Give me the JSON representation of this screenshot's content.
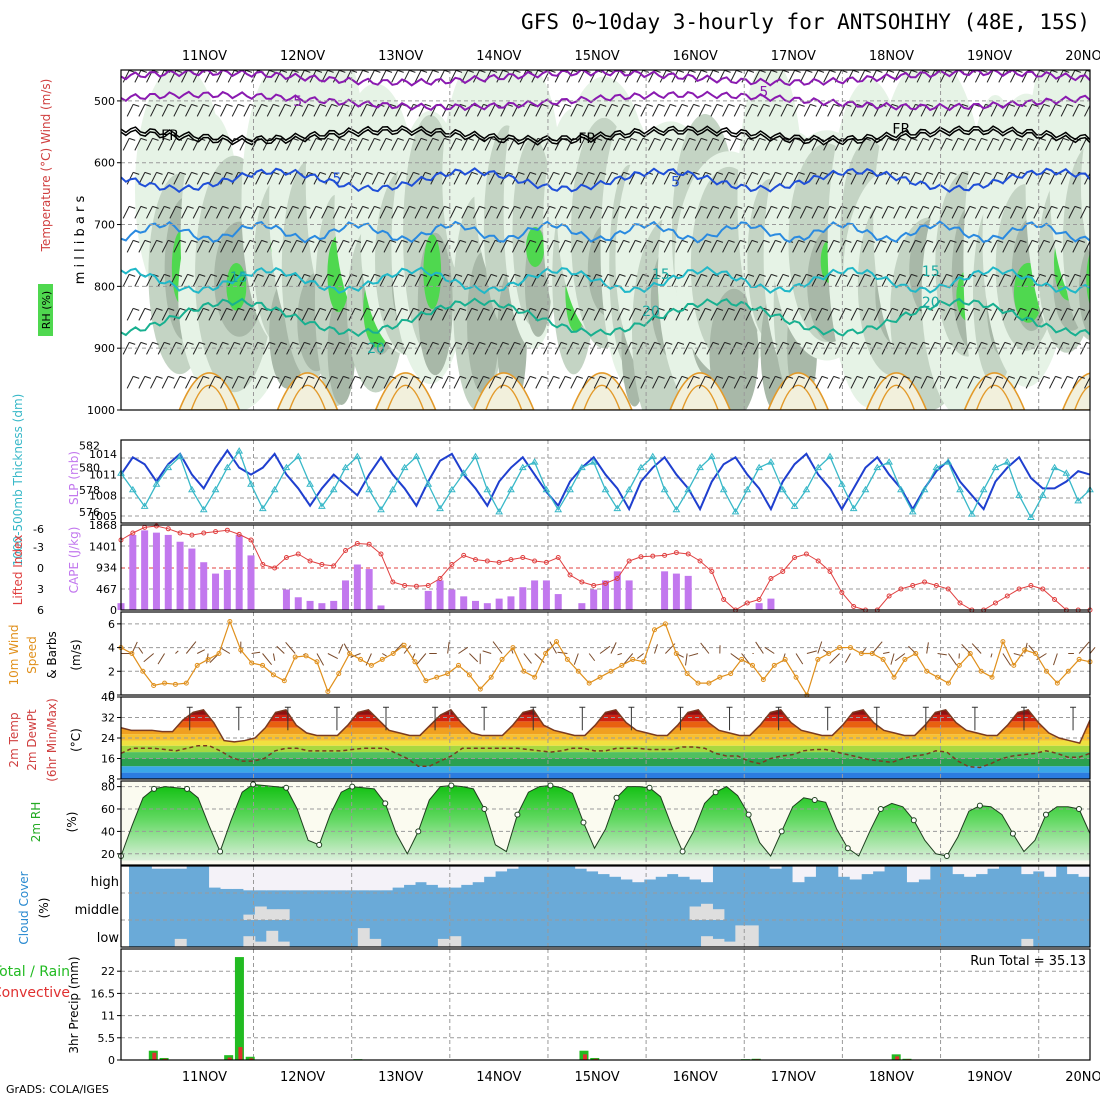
{
  "title": "GFS 0~10day 3-hourly for ANTSOHIHY (48E, 15S)",
  "credit": "GrADS: COLA/IGES",
  "colors": {
    "rh_green": "#4fd84f",
    "rh_light": "#e6f3e6",
    "rh_mid": "#c4d4c4",
    "rh_dark": "#a8b8a8",
    "slp": "#1f3fcf",
    "thickness": "#38b8c8",
    "cape": "#c278ee",
    "lifted": "#e04040",
    "wind10": "#e0901c",
    "barb": "#7a4a2a",
    "cloud": "#6aaad8",
    "cloud_gap": "#f4f2f8",
    "precip_total": "#22bb22",
    "precip_conv": "#e03030"
  },
  "time_axis": {
    "labels": [
      "11NOV",
      "12NOV",
      "13NOV",
      "14NOV",
      "15NOV",
      "16NOV",
      "17NOV",
      "18NOV",
      "19NOV",
      "20NOV"
    ]
  },
  "chart_data": [
    {
      "type": "heatmap",
      "panel": "upper-air",
      "ylabel": "m i l l i b a r s",
      "ylabel_parts": [
        "RH (%)",
        "Temperature (°C)",
        "Wind (m/s)"
      ],
      "yticks": [
        500,
        600,
        700,
        800,
        900,
        1000
      ],
      "ylim": [
        1000,
        450
      ],
      "contour_labels": [
        {
          "text": "5",
          "day": 1.45,
          "p": 500
        },
        {
          "text": "5",
          "day": 6.2,
          "p": 485
        },
        {
          "text": "FR",
          "day": 0.15,
          "p": 555
        },
        {
          "text": "FR",
          "day": 4.4,
          "p": 560
        },
        {
          "text": "FR",
          "day": 7.6,
          "p": 545
        },
        {
          "text": "5",
          "day": 1.85,
          "p": 625
        },
        {
          "text": "5",
          "day": 5.3,
          "p": 630
        },
        {
          "text": "15",
          "day": 0.85,
          "p": 785
        },
        {
          "text": "15",
          "day": 5.15,
          "p": 780
        },
        {
          "text": "15",
          "day": 7.9,
          "p": 775
        },
        {
          "text": "20",
          "day": 5.05,
          "p": 840
        },
        {
          "text": "20",
          "day": 7.9,
          "p": 825
        },
        {
          "text": "20",
          "day": 2.25,
          "p": 900
        }
      ]
    },
    {
      "type": "line",
      "panel": "slp-thickness",
      "ylabel_left": "1000-500mb Thickness (dm)",
      "ylabel_right": "SLP (mb)",
      "left_ticks": [
        576,
        578,
        580,
        582
      ],
      "right_ticks": [
        1005,
        1008,
        1011,
        1014
      ],
      "slp_mb": [
        1011,
        1013.5,
        1012.5,
        1010,
        1012.5,
        1014,
        1011,
        1009,
        1012,
        1014.5,
        1012,
        1011,
        1012,
        1014,
        1011,
        1009,
        1006.5,
        1009,
        1011,
        1009.5,
        1008,
        1011,
        1013.5,
        1011,
        1009,
        1006.5,
        1010,
        1013,
        1014,
        1011,
        1009,
        1006.5,
        1010,
        1012,
        1013.5,
        1011,
        1008.5,
        1006.5,
        1010,
        1012,
        1013.5,
        1011,
        1009,
        1006,
        1010,
        1012,
        1013.5,
        1011,
        1009,
        1006,
        1010,
        1012.5,
        1013.5,
        1011,
        1009,
        1006,
        1010,
        1012.5,
        1014,
        1011,
        1009,
        1006,
        1009,
        1012,
        1013.5,
        1011,
        1009,
        1006,
        1009,
        1011.5,
        1013,
        1010,
        1008,
        1006,
        1010,
        1012,
        1013.5,
        1010.5,
        1009,
        1009,
        1010,
        1011.5,
        1011
      ],
      "thickness_dm": [
        579.5,
        578,
        576.5,
        578.5,
        580,
        581,
        578,
        576.2,
        578,
        580,
        581.5,
        578.5,
        576.3,
        578,
        580,
        581,
        578.5,
        576.5,
        578,
        580,
        581,
        578,
        576.2,
        578,
        580,
        581,
        578.5,
        576.3,
        578,
        579.5,
        581,
        578,
        576,
        578,
        580,
        580.5,
        578,
        576.2,
        578,
        580,
        580.5,
        578,
        576.3,
        578,
        580,
        581,
        578,
        576.2,
        578,
        580,
        581,
        578,
        576,
        578,
        580,
        580.5,
        578,
        576.5,
        578,
        580,
        581,
        578.5,
        576.3,
        578,
        580,
        580.5,
        578,
        576,
        578,
        580,
        580.5,
        578,
        575.8,
        578,
        580,
        580.5,
        577.5,
        575.5,
        577.5,
        580,
        579.5,
        577,
        578
      ]
    },
    {
      "type": "bar",
      "panel": "cape-li",
      "ylabel_left": "Lifted Index",
      "ylabel_right": "CAPE (J/kg)",
      "left_ticks": [
        "6",
        "3",
        "0",
        "-3",
        "-6"
      ],
      "right_ticks": [
        0,
        467,
        934,
        1401,
        1868
      ],
      "cape_jkg": [
        150,
        1650,
        1750,
        1700,
        1650,
        1500,
        1350,
        1050,
        800,
        880,
        1650,
        1200,
        0,
        0,
        450,
        280,
        200,
        150,
        200,
        650,
        1000,
        900,
        100,
        0,
        0,
        0,
        420,
        650,
        450,
        300,
        200,
        150,
        250,
        300,
        500,
        650,
        650,
        350,
        0,
        150,
        450,
        650,
        850,
        650,
        0,
        0,
        850,
        800,
        750,
        0,
        0,
        0,
        0,
        0,
        150,
        250,
        0,
        0,
        0,
        0,
        0,
        0,
        0,
        0,
        0,
        0,
        0,
        0,
        0,
        0,
        0,
        0,
        0,
        0,
        0,
        0,
        0,
        0,
        0,
        0,
        0,
        0,
        0
      ],
      "lifted_index": [
        -4,
        -5,
        -5.8,
        -6,
        -5.6,
        -5,
        -4.7,
        -5,
        -5.2,
        -5.4,
        -4.8,
        -4,
        -0.5,
        0,
        -1.5,
        -2,
        -1,
        -0.5,
        -0.3,
        -2.5,
        -3.5,
        -3.4,
        -2,
        2,
        2.5,
        2.6,
        2.5,
        1.5,
        -0.5,
        -1.8,
        -1.2,
        -1,
        -0.8,
        -1.2,
        -1.5,
        -1,
        -0.8,
        -1.5,
        1,
        2,
        2.5,
        2.2,
        1.5,
        -1,
        -1.6,
        -1.7,
        -1.8,
        -2.2,
        -2,
        -1,
        0.5,
        4.5,
        6,
        5,
        4.5,
        1.5,
        0.5,
        -1.5,
        -2,
        -1,
        0.5,
        3.5,
        5.5,
        6,
        6,
        4,
        3,
        2.5,
        2,
        2.5,
        3,
        5,
        6,
        6,
        5,
        4,
        3,
        2.5,
        3,
        4.5,
        6,
        6,
        6
      ]
    },
    {
      "type": "line",
      "panel": "wind10m",
      "ylabel": "10m Wind Speed & Barbs (m/s)",
      "ylim": [
        0,
        7
      ],
      "yticks": [
        0,
        2,
        4,
        6
      ],
      "speed_ms": [
        4,
        3.5,
        2,
        0.8,
        1,
        0.9,
        1,
        2.5,
        3,
        3.5,
        6.2,
        3.8,
        2.7,
        2.5,
        1.7,
        1.2,
        3.2,
        3.3,
        2.8,
        0.3,
        1.8,
        3.5,
        3,
        2.5,
        3,
        3.5,
        4.2,
        2.8,
        1.2,
        1.5,
        1.8,
        2.5,
        1.7,
        0.5,
        1.5,
        3,
        4,
        2,
        1.5,
        3.5,
        4.5,
        3,
        2,
        1,
        1.5,
        2,
        2.5,
        3,
        2.8,
        5.5,
        6,
        3.5,
        1.8,
        1,
        1,
        1.5,
        1.8,
        3,
        2.5,
        1.3,
        2.5,
        3,
        1.5,
        0,
        3,
        3.5,
        4,
        4,
        3.5,
        3.5,
        3,
        1.5,
        3,
        3.5,
        2,
        1.5,
        1,
        2.5,
        3.5,
        2,
        1.5,
        4.5,
        2.5,
        3.8,
        3.5,
        2,
        1,
        2,
        3,
        2.8
      ]
    },
    {
      "type": "area",
      "panel": "temp2m",
      "ylabel": "2m Temp 2m DewPt (6hr Min/Max) (°C)",
      "ylim": [
        8,
        40
      ],
      "yticks": [
        8,
        16,
        24,
        32,
        40
      ],
      "temp_c": [
        28,
        27,
        27,
        27,
        26.5,
        26.5,
        31,
        34,
        35,
        30,
        23,
        22.5,
        23,
        24,
        28,
        34,
        35,
        29,
        26,
        25,
        25,
        25,
        29,
        34,
        35,
        31,
        27,
        26,
        25,
        25,
        29,
        33,
        35,
        30,
        26,
        25,
        25,
        25,
        29,
        34,
        35,
        29,
        27,
        26,
        25,
        25,
        29,
        34,
        35,
        30,
        27,
        26,
        25,
        25,
        29,
        34,
        35,
        30,
        27,
        26,
        25,
        25,
        29,
        34,
        35,
        30,
        27,
        26,
        25,
        25,
        29,
        34,
        35,
        30,
        27,
        26,
        25,
        25,
        29,
        34,
        35,
        30,
        27,
        26,
        25,
        25,
        29,
        34,
        35,
        30,
        26,
        24,
        23,
        22,
        31
      ],
      "dewpoint_c": [
        18,
        20,
        20,
        20,
        19.5,
        19,
        20,
        21,
        21,
        19,
        16.5,
        15,
        15,
        16,
        19,
        20,
        20,
        19,
        19,
        19,
        19,
        19.5,
        20,
        20,
        20,
        18,
        16,
        13,
        13,
        15,
        17,
        20,
        20,
        20,
        20,
        20,
        20,
        19.5,
        19,
        18.5,
        19,
        20,
        20,
        19,
        19,
        20,
        20,
        20,
        19.5,
        19.5,
        19.5,
        20.5,
        20.5,
        20,
        18,
        17,
        17,
        15,
        14,
        16,
        17,
        17.5,
        19,
        19.5,
        19.5,
        18.5,
        17.5,
        16.5,
        15.5,
        15,
        14.5,
        16,
        17,
        17.5,
        19,
        18.5,
        15,
        12.8,
        12.5,
        14,
        16,
        17,
        17.5,
        18,
        19,
        18,
        16.5,
        16.5,
        18
      ]
    },
    {
      "type": "area",
      "panel": "rh2m",
      "ylabel": "2m RH (%)",
      "ylim": [
        10,
        85
      ],
      "yticks": [
        20,
        40,
        60,
        80
      ],
      "rh_pct": [
        18,
        45,
        70,
        78,
        80,
        79,
        78,
        70,
        45,
        22,
        50,
        75,
        82,
        81,
        80,
        79,
        60,
        32,
        28,
        55,
        75,
        80,
        79,
        78,
        65,
        38,
        20,
        40,
        68,
        80,
        81,
        80,
        78,
        60,
        28,
        22,
        55,
        75,
        80,
        81,
        79,
        74,
        48,
        25,
        42,
        70,
        80,
        80,
        79,
        71,
        45,
        22,
        40,
        65,
        75,
        80,
        72,
        55,
        30,
        18,
        40,
        62,
        70,
        68,
        66,
        42,
        25,
        18,
        40,
        60,
        65,
        62,
        50,
        32,
        20,
        18,
        35,
        58,
        63,
        62,
        55,
        38,
        22,
        32,
        55,
        62,
        62,
        60,
        38
      ]
    },
    {
      "type": "bar",
      "panel": "cloud",
      "ylabel": "Cloud Cover (%)",
      "levels": [
        "high",
        "middle",
        "low"
      ],
      "high_pct": [
        100,
        100,
        90,
        90,
        90,
        100,
        100,
        20,
        15,
        15,
        10,
        10,
        10,
        10,
        10,
        10,
        10,
        10,
        10,
        10,
        10,
        10,
        10,
        20,
        30,
        40,
        30,
        20,
        20,
        30,
        40,
        60,
        80,
        90,
        100,
        100,
        100,
        100,
        100,
        90,
        80,
        70,
        60,
        50,
        40,
        50,
        60,
        70,
        60,
        50,
        40,
        100,
        100,
        100,
        100,
        100,
        90,
        100,
        40,
        60,
        100,
        100,
        60,
        50,
        70,
        80,
        100,
        100,
        40,
        50,
        100,
        100,
        70,
        60,
        70,
        90,
        100,
        100,
        70,
        80,
        60,
        100,
        70,
        60
      ],
      "middle_pct": [
        0,
        0,
        0,
        0,
        0,
        0,
        0,
        0,
        0,
        0,
        20,
        50,
        40,
        40,
        0,
        0,
        0,
        0,
        0,
        0,
        0,
        0,
        0,
        0,
        0,
        0,
        0,
        0,
        0,
        0,
        0,
        0,
        0,
        0,
        0,
        0,
        0,
        0,
        0,
        0,
        0,
        0,
        0,
        0,
        0,
        0,
        0,
        0,
        0,
        50,
        60,
        40,
        0,
        0,
        0,
        0,
        0,
        0,
        0,
        0,
        0,
        0,
        0,
        0,
        0,
        0,
        0,
        0,
        0,
        0,
        0,
        0,
        0,
        0,
        0,
        0,
        0,
        0,
        0,
        0,
        0,
        0,
        0,
        0
      ],
      "low_pct": [
        0,
        0,
        0,
        0,
        30,
        0,
        0,
        0,
        0,
        0,
        40,
        20,
        60,
        20,
        0,
        0,
        0,
        0,
        0,
        0,
        70,
        30,
        0,
        0,
        0,
        0,
        0,
        30,
        40,
        0,
        0,
        0,
        0,
        0,
        0,
        0,
        0,
        0,
        0,
        0,
        0,
        0,
        0,
        0,
        0,
        0,
        0,
        0,
        0,
        0,
        40,
        30,
        20,
        80,
        80,
        0,
        0,
        0,
        0,
        0,
        0,
        0,
        0,
        0,
        0,
        0,
        0,
        0,
        0,
        0,
        0,
        0,
        0,
        0,
        0,
        0,
        0,
        0,
        30,
        0,
        0,
        0,
        0,
        0
      ]
    },
    {
      "type": "bar",
      "panel": "precip",
      "ylabel": "3hr Precip (mm)",
      "legend": [
        "Total / Rain",
        "Convective"
      ],
      "annotation": "Run Total = 35.13",
      "ylim": [
        0,
        27.5
      ],
      "yticks": [
        0,
        5.5,
        11,
        16.5,
        22
      ],
      "total_mm": [
        0,
        0,
        0,
        2.3,
        0.5,
        0,
        0,
        0,
        0,
        0,
        1.2,
        25.5,
        0.8,
        0,
        0,
        0,
        0,
        0,
        0,
        0,
        0,
        0,
        0.2,
        0,
        0,
        0,
        0,
        0,
        0,
        0,
        0,
        0,
        0,
        0,
        0,
        0,
        0,
        0,
        0,
        0,
        0,
        0,
        0,
        2.3,
        0.5,
        0,
        0,
        0,
        0,
        0,
        0,
        0,
        0,
        0,
        0,
        0,
        0,
        0,
        0.2,
        0.3,
        0,
        0,
        0,
        0,
        0,
        0,
        0,
        0,
        0,
        0,
        0,
        0,
        1.4,
        0.3,
        0,
        0,
        0,
        0,
        0,
        0,
        0,
        0,
        0,
        0,
        0,
        0,
        0,
        0,
        0,
        0,
        0
      ],
      "convective_mm": [
        0,
        0,
        0,
        1.8,
        0.3,
        0,
        0,
        0,
        0,
        0,
        0.6,
        3.2,
        0.4,
        0,
        0,
        0,
        0,
        0,
        0,
        0,
        0,
        0,
        0.1,
        0,
        0,
        0,
        0,
        0,
        0,
        0,
        0,
        0,
        0,
        0,
        0,
        0,
        0,
        0,
        0,
        0,
        0,
        0,
        0,
        1.4,
        0.3,
        0,
        0,
        0,
        0,
        0,
        0,
        0,
        0,
        0,
        0,
        0,
        0,
        0,
        0.1,
        0.2,
        0,
        0,
        0,
        0,
        0,
        0,
        0,
        0,
        0,
        0,
        0,
        0,
        0.9,
        0.2,
        0,
        0,
        0,
        0,
        0,
        0,
        0,
        0,
        0,
        0,
        0,
        0,
        0,
        0,
        0,
        0,
        0
      ]
    }
  ]
}
